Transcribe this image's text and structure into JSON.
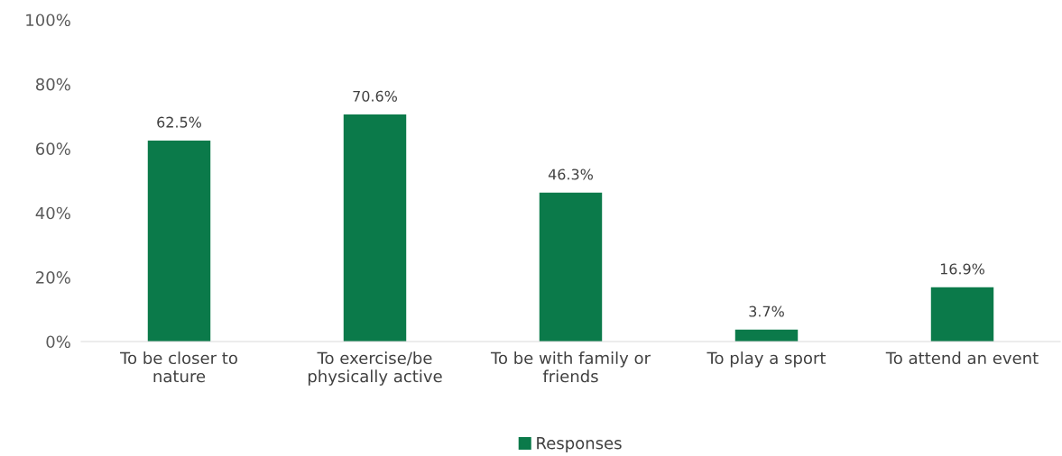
{
  "chart_data": {
    "type": "bar",
    "categories": [
      "To be closer to\nnature",
      "To exercise/be\nphysically active",
      "To be with family or\nfriends",
      "To play a sport",
      "To attend an event"
    ],
    "series": [
      {
        "name": "Responses",
        "color": "#0b7a4a",
        "values": [
          62.5,
          70.6,
          46.3,
          3.7,
          16.9
        ],
        "value_labels": [
          "62.5%",
          "70.6%",
          "46.3%",
          "3.7%",
          "16.9%"
        ]
      }
    ],
    "ylim": [
      0,
      100
    ],
    "yticks": [
      {
        "value": 0,
        "label": "0%"
      },
      {
        "value": 20,
        "label": "20%"
      },
      {
        "value": 40,
        "label": "40%"
      },
      {
        "value": 60,
        "label": "60%"
      },
      {
        "value": 80,
        "label": "80%"
      },
      {
        "value": 100,
        "label": "100%"
      }
    ],
    "grid": false,
    "legend": "bottom"
  }
}
